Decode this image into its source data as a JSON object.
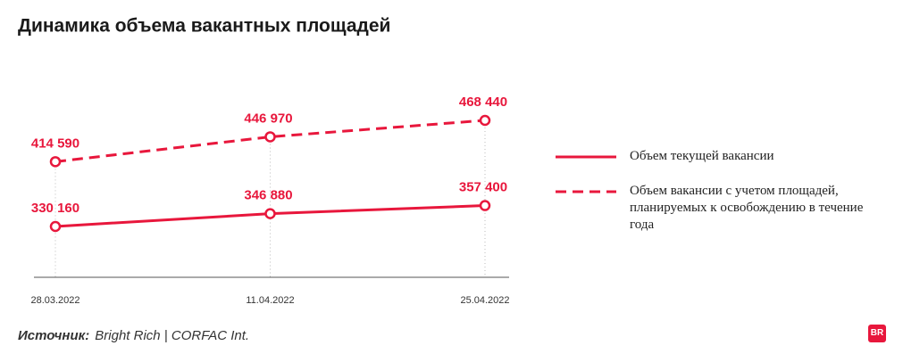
{
  "chart_data": {
    "type": "line",
    "title": "Динамика объема вакантных площадей",
    "categories": [
      "28.03.2022",
      "11.04.2022",
      "25.04.2022"
    ],
    "series": [
      {
        "name": "Объем текущей вакансии",
        "color": "#e8173c",
        "style": "solid",
        "values": [
          330160,
          346880,
          357400
        ],
        "value_labels": [
          "330 160",
          "346 880",
          "357 400"
        ]
      },
      {
        "name": "Объем вакансии с учетом площадей, планируемых к освобождению в течение года",
        "color": "#e8173c",
        "style": "dashed",
        "values": [
          414590,
          446970,
          468440
        ],
        "value_labels": [
          "414 590",
          "446 970",
          "468 440"
        ]
      }
    ],
    "source": {
      "label": "Источник:",
      "text": "Bright Rich | CORFAC Int."
    },
    "logo": "BR"
  }
}
